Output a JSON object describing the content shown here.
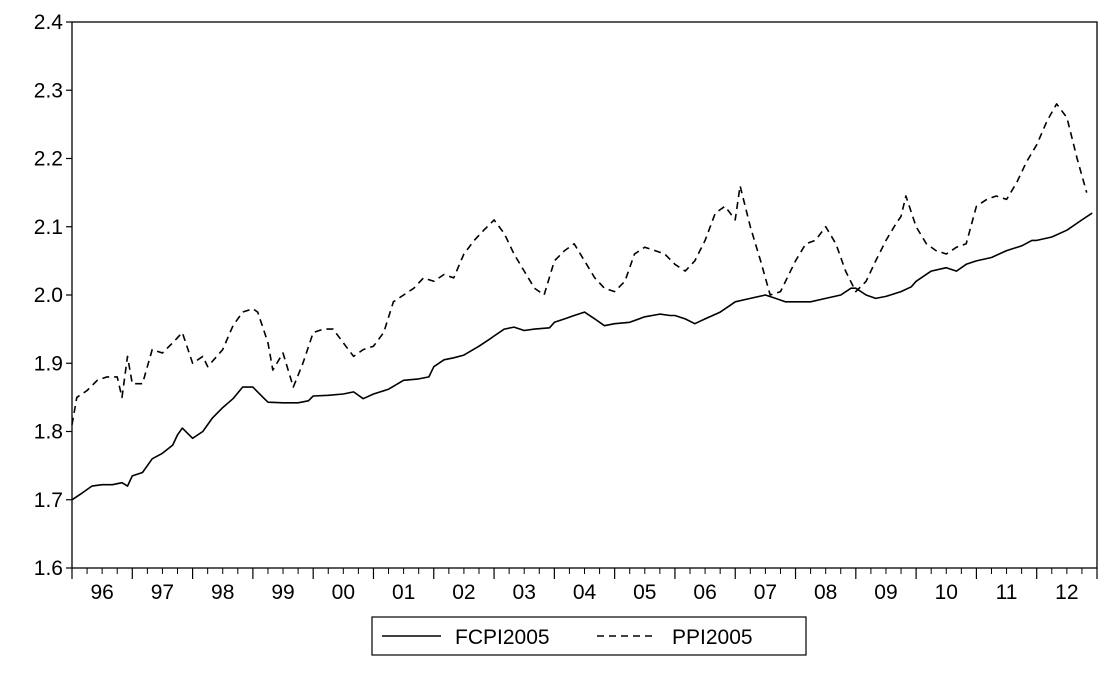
{
  "chart_data": {
    "type": "line",
    "title": "",
    "xlabel": "",
    "ylabel": "",
    "ylim": [
      1.6,
      2.4
    ],
    "yticks": [
      "1.6",
      "1.7",
      "1.8",
      "1.9",
      "2.0",
      "2.1",
      "2.2",
      "2.3",
      "2.4"
    ],
    "xlim": [
      1996.0,
      2013.0
    ],
    "xticks": [
      "96",
      "97",
      "98",
      "99",
      "00",
      "01",
      "02",
      "03",
      "04",
      "05",
      "06",
      "07",
      "08",
      "09",
      "10",
      "11",
      "12"
    ],
    "minor_ticks_per_year": 4,
    "grid": false,
    "legend_position": "bottom-center",
    "series": [
      {
        "name": "FCPI2005",
        "line_style": "solid",
        "color": "#000000",
        "points": [
          [
            1996.0,
            1.7
          ],
          [
            1996.17,
            1.71
          ],
          [
            1996.33,
            1.72
          ],
          [
            1996.5,
            1.722
          ],
          [
            1996.67,
            1.722
          ],
          [
            1996.83,
            1.725
          ],
          [
            1996.92,
            1.72
          ],
          [
            1997.0,
            1.735
          ],
          [
            1997.17,
            1.74
          ],
          [
            1997.33,
            1.76
          ],
          [
            1997.5,
            1.768
          ],
          [
            1997.67,
            1.78
          ],
          [
            1997.75,
            1.795
          ],
          [
            1997.83,
            1.805
          ],
          [
            1998.0,
            1.79
          ],
          [
            1998.17,
            1.8
          ],
          [
            1998.33,
            1.82
          ],
          [
            1998.5,
            1.835
          ],
          [
            1998.67,
            1.848
          ],
          [
            1998.83,
            1.865
          ],
          [
            1999.0,
            1.865
          ],
          [
            1999.17,
            1.85
          ],
          [
            1999.25,
            1.843
          ],
          [
            1999.5,
            1.842
          ],
          [
            1999.75,
            1.842
          ],
          [
            1999.92,
            1.845
          ],
          [
            2000.0,
            1.852
          ],
          [
            2000.25,
            1.853
          ],
          [
            2000.5,
            1.855
          ],
          [
            2000.67,
            1.858
          ],
          [
            2000.83,
            1.848
          ],
          [
            2001.0,
            1.855
          ],
          [
            2001.25,
            1.862
          ],
          [
            2001.5,
            1.875
          ],
          [
            2001.75,
            1.877
          ],
          [
            2001.92,
            1.88
          ],
          [
            2002.0,
            1.895
          ],
          [
            2002.17,
            1.905
          ],
          [
            2002.33,
            1.908
          ],
          [
            2002.5,
            1.912
          ],
          [
            2002.75,
            1.925
          ],
          [
            2002.92,
            1.935
          ],
          [
            2003.0,
            1.94
          ],
          [
            2003.17,
            1.95
          ],
          [
            2003.33,
            1.953
          ],
          [
            2003.5,
            1.948
          ],
          [
            2003.67,
            1.95
          ],
          [
            2003.92,
            1.952
          ],
          [
            2004.0,
            1.96
          ],
          [
            2004.17,
            1.965
          ],
          [
            2004.33,
            1.97
          ],
          [
            2004.5,
            1.975
          ],
          [
            2004.67,
            1.965
          ],
          [
            2004.83,
            1.955
          ],
          [
            2005.0,
            1.958
          ],
          [
            2005.25,
            1.96
          ],
          [
            2005.5,
            1.968
          ],
          [
            2005.75,
            1.972
          ],
          [
            2005.92,
            1.97
          ],
          [
            2006.0,
            1.97
          ],
          [
            2006.17,
            1.965
          ],
          [
            2006.33,
            1.958
          ],
          [
            2006.5,
            1.965
          ],
          [
            2006.75,
            1.975
          ],
          [
            2006.92,
            1.985
          ],
          [
            2007.0,
            1.99
          ],
          [
            2007.25,
            1.995
          ],
          [
            2007.5,
            2.0
          ],
          [
            2007.67,
            1.995
          ],
          [
            2007.83,
            1.99
          ],
          [
            2008.0,
            1.99
          ],
          [
            2008.25,
            1.99
          ],
          [
            2008.5,
            1.995
          ],
          [
            2008.75,
            2.0
          ],
          [
            2008.92,
            2.01
          ],
          [
            2009.0,
            2.01
          ],
          [
            2009.17,
            2.0
          ],
          [
            2009.33,
            1.995
          ],
          [
            2009.5,
            1.998
          ],
          [
            2009.75,
            2.005
          ],
          [
            2009.92,
            2.012
          ],
          [
            2010.0,
            2.02
          ],
          [
            2010.25,
            2.035
          ],
          [
            2010.5,
            2.04
          ],
          [
            2010.67,
            2.035
          ],
          [
            2010.83,
            2.045
          ],
          [
            2011.0,
            2.05
          ],
          [
            2011.25,
            2.055
          ],
          [
            2011.5,
            2.065
          ],
          [
            2011.75,
            2.072
          ],
          [
            2011.92,
            2.08
          ],
          [
            2012.0,
            2.08
          ],
          [
            2012.25,
            2.085
          ],
          [
            2012.5,
            2.095
          ],
          [
            2012.75,
            2.11
          ],
          [
            2012.92,
            2.12
          ]
        ]
      },
      {
        "name": "PPI2005",
        "line_style": "dashed",
        "color": "#000000",
        "points": [
          [
            1996.0,
            1.81
          ],
          [
            1996.08,
            1.85
          ],
          [
            1996.25,
            1.86
          ],
          [
            1996.42,
            1.875
          ],
          [
            1996.58,
            1.88
          ],
          [
            1996.75,
            1.88
          ],
          [
            1996.83,
            1.85
          ],
          [
            1996.92,
            1.91
          ],
          [
            1997.0,
            1.87
          ],
          [
            1997.17,
            1.87
          ],
          [
            1997.33,
            1.92
          ],
          [
            1997.5,
            1.915
          ],
          [
            1997.67,
            1.93
          ],
          [
            1997.83,
            1.945
          ],
          [
            1998.0,
            1.9
          ],
          [
            1998.17,
            1.91
          ],
          [
            1998.25,
            1.895
          ],
          [
            1998.5,
            1.92
          ],
          [
            1998.67,
            1.955
          ],
          [
            1998.83,
            1.975
          ],
          [
            1999.0,
            1.98
          ],
          [
            1999.08,
            1.975
          ],
          [
            1999.25,
            1.93
          ],
          [
            1999.33,
            1.89
          ],
          [
            1999.5,
            1.915
          ],
          [
            1999.67,
            1.865
          ],
          [
            1999.83,
            1.9
          ],
          [
            2000.0,
            1.945
          ],
          [
            2000.17,
            1.95
          ],
          [
            2000.33,
            1.95
          ],
          [
            2000.5,
            1.93
          ],
          [
            2000.67,
            1.91
          ],
          [
            2000.83,
            1.92
          ],
          [
            2001.0,
            1.925
          ],
          [
            2001.17,
            1.945
          ],
          [
            2001.33,
            1.99
          ],
          [
            2001.5,
            2.0
          ],
          [
            2001.67,
            2.01
          ],
          [
            2001.83,
            2.025
          ],
          [
            2002.0,
            2.02
          ],
          [
            2002.17,
            2.03
          ],
          [
            2002.33,
            2.025
          ],
          [
            2002.5,
            2.06
          ],
          [
            2002.67,
            2.08
          ],
          [
            2002.83,
            2.095
          ],
          [
            2003.0,
            2.11
          ],
          [
            2003.17,
            2.09
          ],
          [
            2003.33,
            2.06
          ],
          [
            2003.5,
            2.035
          ],
          [
            2003.67,
            2.01
          ],
          [
            2003.83,
            2.0
          ],
          [
            2004.0,
            2.05
          ],
          [
            2004.17,
            2.065
          ],
          [
            2004.33,
            2.075
          ],
          [
            2004.5,
            2.05
          ],
          [
            2004.67,
            2.025
          ],
          [
            2004.83,
            2.01
          ],
          [
            2005.0,
            2.005
          ],
          [
            2005.17,
            2.02
          ],
          [
            2005.33,
            2.06
          ],
          [
            2005.5,
            2.07
          ],
          [
            2005.67,
            2.065
          ],
          [
            2005.83,
            2.06
          ],
          [
            2006.0,
            2.045
          ],
          [
            2006.17,
            2.035
          ],
          [
            2006.33,
            2.05
          ],
          [
            2006.5,
            2.08
          ],
          [
            2006.67,
            2.12
          ],
          [
            2006.83,
            2.13
          ],
          [
            2007.0,
            2.11
          ],
          [
            2007.08,
            2.16
          ],
          [
            2007.25,
            2.1
          ],
          [
            2007.42,
            2.05
          ],
          [
            2007.58,
            2.0
          ],
          [
            2007.75,
            2.005
          ],
          [
            2008.0,
            2.05
          ],
          [
            2008.17,
            2.075
          ],
          [
            2008.33,
            2.08
          ],
          [
            2008.5,
            2.1
          ],
          [
            2008.67,
            2.075
          ],
          [
            2008.83,
            2.035
          ],
          [
            2009.0,
            2.005
          ],
          [
            2009.17,
            2.02
          ],
          [
            2009.33,
            2.05
          ],
          [
            2009.5,
            2.08
          ],
          [
            2009.67,
            2.105
          ],
          [
            2009.75,
            2.115
          ],
          [
            2009.83,
            2.145
          ],
          [
            2010.0,
            2.1
          ],
          [
            2010.17,
            2.075
          ],
          [
            2010.33,
            2.065
          ],
          [
            2010.5,
            2.06
          ],
          [
            2010.67,
            2.07
          ],
          [
            2010.83,
            2.075
          ],
          [
            2011.0,
            2.13
          ],
          [
            2011.17,
            2.14
          ],
          [
            2011.33,
            2.145
          ],
          [
            2011.5,
            2.14
          ],
          [
            2011.67,
            2.165
          ],
          [
            2011.83,
            2.195
          ],
          [
            2012.0,
            2.22
          ],
          [
            2012.17,
            2.255
          ],
          [
            2012.33,
            2.28
          ],
          [
            2012.5,
            2.26
          ],
          [
            2012.67,
            2.2
          ],
          [
            2012.83,
            2.15
          ]
        ]
      }
    ]
  },
  "legend": {
    "items": [
      "FCPI2005",
      "PPI2005"
    ]
  }
}
